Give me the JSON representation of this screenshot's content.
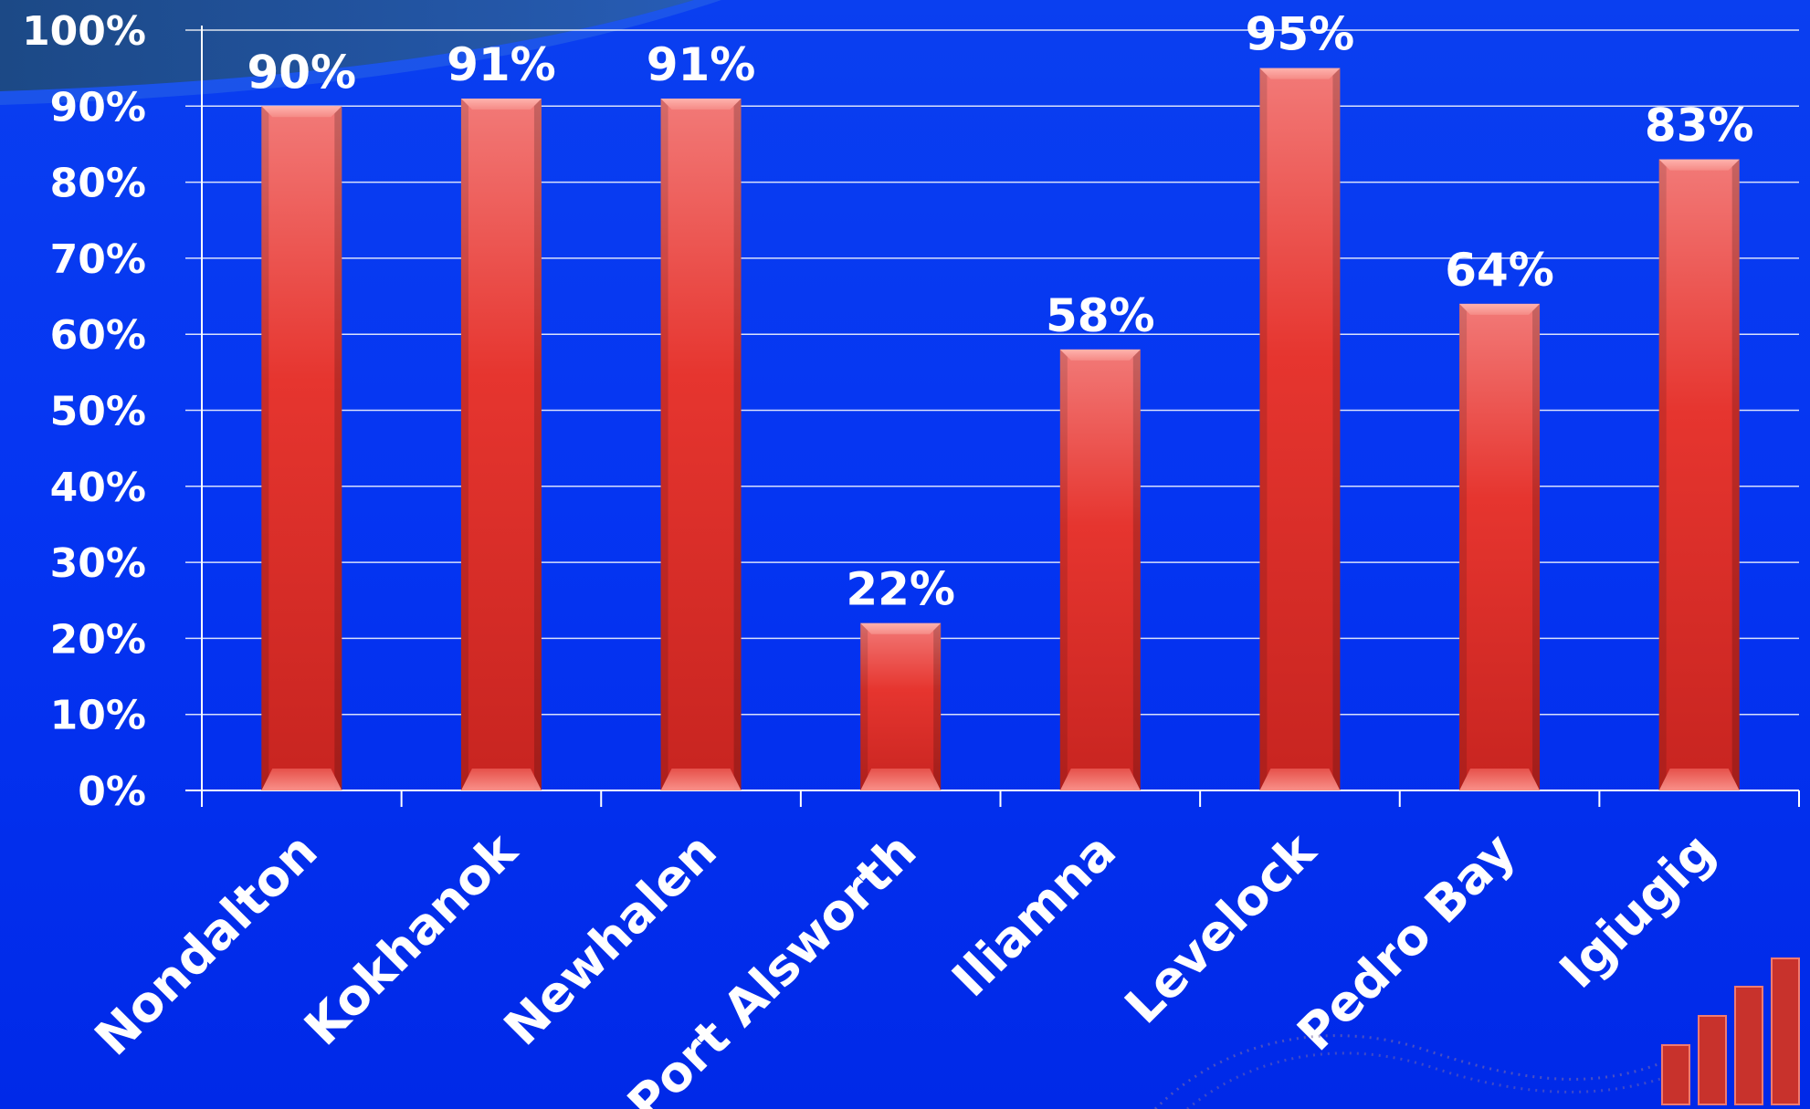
{
  "chart_data": {
    "type": "bar",
    "title": "",
    "xlabel": "",
    "ylabel": "",
    "categories": [
      "Nondalton",
      "Kokhanok",
      "Newhalen",
      "Port Alsworth",
      "Iliamna",
      "Levelock",
      "Pedro Bay",
      "Igiugig"
    ],
    "values": [
      90,
      91,
      91,
      22,
      58,
      95,
      64,
      83
    ],
    "data_labels": [
      "90%",
      "91%",
      "91%",
      "22%",
      "58%",
      "95%",
      "64%",
      "83%"
    ],
    "ylim": [
      0,
      100
    ],
    "yticks": [
      0,
      10,
      20,
      30,
      40,
      50,
      60,
      70,
      80,
      90,
      100
    ],
    "ytick_labels": [
      "0%",
      "10%",
      "20%",
      "30%",
      "40%",
      "50%",
      "60%",
      "70%",
      "80%",
      "90%",
      "100%"
    ],
    "grid": true,
    "legend": "none",
    "bar_color": "#d9322e",
    "background_color": "#0535f2"
  }
}
